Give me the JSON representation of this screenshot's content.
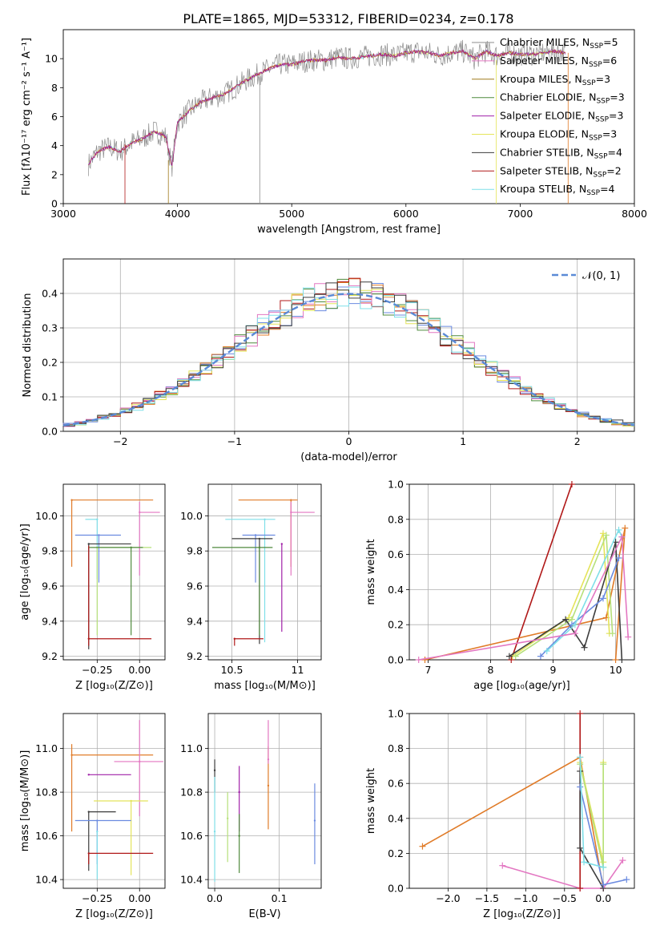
{
  "figure_title": "PLATE=1865, MJD=53312, FIBERID=0234, z=0.178",
  "colors": {
    "Chabrier MILES": "#8c8c8c",
    "Salpeter MILES": "#e377c2",
    "Kroupa MILES": "#a07a1a",
    "Chabrier ELODIE": "#4f8a3c",
    "Salpeter ELODIE": "#a020a8",
    "Kroupa ELODIE": "#e4e45a",
    "Chabrier STELIB": "#3c3c3c",
    "Salpeter STELIB": "#b01818",
    "Kroupa STELIB": "#7fdfe8",
    "blue": "#6b8be0",
    "orange": "#e07b28",
    "green": "#b6e07a"
  },
  "chart_data": [
    {
      "id": "spectrum",
      "type": "line",
      "title": "PLATE=1865, MJD=53312, FIBERID=0234, z=0.178",
      "xlabel": "wavelength [Angstrom, rest frame]",
      "ylabel": "Flux [fλ10⁻¹⁷ erg cm⁻² s⁻¹ A⁻¹]",
      "xlim": [
        3000,
        8000
      ],
      "ylim": [
        0,
        12
      ],
      "xticks": [
        3000,
        4000,
        5000,
        6000,
        7000,
        8000
      ],
      "yticks": [
        0,
        2,
        4,
        6,
        8,
        10
      ],
      "legend_position": "right",
      "spectrum_x": [
        3220,
        3300,
        3400,
        3500,
        3600,
        3700,
        3800,
        3900,
        3950,
        4000,
        4100,
        4200,
        4300,
        4400,
        4500,
        4600,
        4700,
        4800,
        4900,
        5000,
        5100,
        5200,
        5300,
        5400,
        5500,
        5600,
        5700,
        5800,
        5900,
        6000,
        6100,
        6200,
        6300,
        6400,
        6500,
        6600,
        6700,
        6800,
        6900,
        7000,
        7100,
        7200,
        7300,
        7400
      ],
      "spectrum_y": [
        2.7,
        3.6,
        3.9,
        3.6,
        4.2,
        4.5,
        5.0,
        4.6,
        2.5,
        5.6,
        6.4,
        7.0,
        7.3,
        7.5,
        8.0,
        8.5,
        8.9,
        9.3,
        9.6,
        9.6,
        9.8,
        9.9,
        9.9,
        10.1,
        10.0,
        10.1,
        10.2,
        10.3,
        10.2,
        10.4,
        10.5,
        10.4,
        10.2,
        10.4,
        10.5,
        10.0,
        10.5,
        10.2,
        10.4,
        10.3,
        10.3,
        10.4,
        10.5,
        10.4
      ],
      "series": [
        {
          "name": "Chabrier MILES",
          "label_prefix": "Chabrier MILES, N",
          "n_ssp": "5"
        },
        {
          "name": "Salpeter MILES",
          "label_prefix": "Salpeter MILES, N",
          "n_ssp": "6"
        },
        {
          "name": "Kroupa MILES",
          "label_prefix": "Kroupa MILES, N",
          "n_ssp": "3"
        },
        {
          "name": "Chabrier ELODIE",
          "label_prefix": "Chabrier ELODIE, N",
          "n_ssp": "3"
        },
        {
          "name": "Salpeter ELODIE",
          "label_prefix": "Salpeter ELODIE, N",
          "n_ssp": "3"
        },
        {
          "name": "Kroupa ELODIE",
          "label_prefix": "Kroupa ELODIE, N",
          "n_ssp": "3"
        },
        {
          "name": "Chabrier STELIB",
          "label_prefix": "Chabrier STELIB, N",
          "n_ssp": "4"
        },
        {
          "name": "Salpeter STELIB",
          "label_prefix": "Salpeter STELIB, N",
          "n_ssp": "2"
        },
        {
          "name": "Kroupa STELIB",
          "label_prefix": "Kroupa STELIB, N",
          "n_ssp": "4"
        }
      ],
      "legend_subscript": "SSP"
    },
    {
      "id": "residuals",
      "type": "histogram",
      "xlabel": "(data-model)/error",
      "ylabel": "Normed distribution",
      "xlim": [
        -2.5,
        2.5
      ],
      "ylim": [
        0,
        0.5
      ],
      "xticks": [
        -2,
        -1,
        0,
        1,
        2
      ],
      "yticks": [
        0.0,
        0.1,
        0.2,
        0.3,
        0.4
      ],
      "grid": true,
      "bin_width": 0.1,
      "legend": "𝒩(0, 1)",
      "legend_position": "top-right",
      "reference_curve": "normal pdf mean 0 sigma 1"
    },
    {
      "id": "age-vs-Z",
      "type": "errorbar",
      "xlabel": "Z [log₁₀(Z/Z⊙)]",
      "ylabel": "age  [log₁₀(age/yr)]",
      "xlim": [
        -0.45,
        0.15
      ],
      "ylim": [
        9.18,
        10.18
      ],
      "xticks": [
        -0.25,
        0.0
      ],
      "xticklabels": [
        "−0.25",
        "0.00"
      ],
      "yticks": [
        9.2,
        9.4,
        9.6,
        9.8,
        10.0
      ],
      "grid": true,
      "points": [
        {
          "color": "orange",
          "x": -0.4,
          "xerr": [
            0,
            0.48
          ],
          "y": 10.09,
          "yerr": [
            0.38,
            0.0
          ]
        },
        {
          "color": "Salpeter MILES",
          "x": 0.0,
          "xerr": [
            0,
            0.12
          ],
          "y": 10.02,
          "yerr": [
            0.36,
            0.06
          ]
        },
        {
          "color": "Kroupa STELIB",
          "x": -0.25,
          "xerr": [
            0.07,
            0.0
          ],
          "y": 9.98,
          "yerr": [
            0.34,
            0.0
          ]
        },
        {
          "color": "blue",
          "x": -0.24,
          "xerr": [
            0.14,
            0.13
          ],
          "y": 9.89,
          "yerr": [
            0.27,
            0.0
          ]
        },
        {
          "color": "Chabrier STELIB",
          "x": -0.3,
          "xerr": [
            0,
            0.25
          ],
          "y": 9.84,
          "yerr": [
            0.6,
            0.0
          ]
        },
        {
          "color": "green",
          "x": -0.25,
          "xerr": [
            0,
            0.32
          ],
          "y": 9.82,
          "yerr": [
            0.5,
            0.0
          ]
        },
        {
          "color": "Chabrier ELODIE",
          "x": -0.05,
          "xerr": [
            0.25,
            0.07
          ],
          "y": 9.82,
          "yerr": [
            0.5,
            0.0
          ]
        },
        {
          "color": "Salpeter STELIB",
          "x": -0.3,
          "xerr": [
            0,
            0.37
          ],
          "y": 9.3,
          "yerr": [
            0.04,
            0.53
          ]
        }
      ]
    },
    {
      "id": "age-vs-mass",
      "type": "errorbar",
      "xlabel": "mass [log₁₀(M/M⊙)]",
      "xlim": [
        10.32,
        11.18
      ],
      "ylim": [
        9.18,
        10.18
      ],
      "xticks": [
        10.5,
        11.0
      ],
      "yticks": [
        9.2,
        9.4,
        9.6,
        9.8,
        10.0
      ],
      "grid": true,
      "points": [
        {
          "color": "orange",
          "x": 10.95,
          "xerr": [
            0.4,
            0.05
          ],
          "y": 10.09,
          "yerr": [
            0.38,
            0.0
          ]
        },
        {
          "color": "Salpeter MILES",
          "x": 10.95,
          "xerr": [
            0,
            0.18
          ],
          "y": 10.02,
          "yerr": [
            0.36,
            0.06
          ]
        },
        {
          "color": "Kroupa STELIB",
          "x": 10.75,
          "xerr": [
            0.3,
            0.08
          ],
          "y": 9.98,
          "yerr": [
            0.7,
            0.0
          ]
        },
        {
          "color": "blue",
          "x": 10.68,
          "xerr": [
            0.1,
            0.15
          ],
          "y": 9.89,
          "yerr": [
            0.27,
            0.0
          ]
        },
        {
          "color": "Chabrier STELIB",
          "x": 10.71,
          "xerr": [
            0.21,
            0.1
          ],
          "y": 9.87,
          "yerr": [
            0.6,
            0.0
          ]
        },
        {
          "color": "Salpeter ELODIE",
          "x": 10.88,
          "xerr": [
            0,
            0.0
          ],
          "y": 9.84,
          "yerr": [
            0.5,
            0.0
          ]
        },
        {
          "color": "Chabrier ELODIE",
          "x": 10.71,
          "xerr": [
            0.36,
            0.1
          ],
          "y": 9.82,
          "yerr": [
            0.5,
            0.0
          ]
        },
        {
          "color": "Salpeter STELIB",
          "x": 10.52,
          "xerr": [
            0.0,
            0.22
          ],
          "y": 9.3,
          "yerr": [
            0.04,
            0.0
          ]
        }
      ]
    },
    {
      "id": "weight-vs-age",
      "type": "line",
      "xlabel": "age  [log₁₀(age/yr)]",
      "ylabel": "mass weight",
      "xlim": [
        6.7,
        10.3
      ],
      "ylim": [
        0,
        1.0
      ],
      "xticks": [
        7,
        8,
        9,
        10
      ],
      "yticks": [
        0.0,
        0.2,
        0.4,
        0.6,
        0.8,
        1.0
      ],
      "grid": true,
      "series": [
        {
          "color": "Salpeter STELIB",
          "x": [
            8.33,
            9.3
          ],
          "y": [
            0.0,
            1.0
          ]
        },
        {
          "color": "orange",
          "x": [
            6.95,
            9.85,
            10.15,
            10.0
          ],
          "y": [
            0.0,
            0.24,
            0.75,
            0.0
          ]
        },
        {
          "color": "Kroupa ELODIE",
          "x": [
            8.35,
            9.25,
            9.8,
            9.9
          ],
          "y": [
            0.02,
            0.24,
            0.72,
            0.15
          ]
        },
        {
          "color": "green",
          "x": [
            8.4,
            9.3,
            9.85,
            9.95
          ],
          "y": [
            0.02,
            0.23,
            0.71,
            0.15
          ]
        },
        {
          "color": "Chabrier STELIB",
          "x": [
            8.3,
            9.2,
            9.5,
            10.0,
            10.1
          ],
          "y": [
            0.02,
            0.23,
            0.07,
            0.67,
            0.0
          ]
        },
        {
          "color": "blue",
          "x": [
            8.8,
            9.3,
            9.8,
            10.05
          ],
          "y": [
            0.02,
            0.2,
            0.35,
            0.58
          ]
        },
        {
          "color": "Kroupa STELIB",
          "x": [
            8.9,
            9.35,
            10.05,
            10.1
          ],
          "y": [
            0.05,
            0.2,
            0.74,
            0.7
          ]
        },
        {
          "color": "Salpeter MILES",
          "x": [
            6.85,
            9.35,
            10.1,
            10.2
          ],
          "y": [
            0.0,
            0.15,
            0.7,
            0.13
          ]
        }
      ]
    },
    {
      "id": "mass-vs-Z",
      "type": "errorbar",
      "xlabel": "Z [log₁₀(Z/Z⊙)]",
      "ylabel": "mass [log₁₀(M/M⊙)]",
      "xlim": [
        -0.45,
        0.15
      ],
      "ylim": [
        10.36,
        11.16
      ],
      "xticks": [
        -0.25,
        0.0
      ],
      "xticklabels": [
        "−0.25",
        "0.00"
      ],
      "yticks": [
        10.4,
        10.6,
        10.8,
        11.0
      ],
      "grid": true,
      "points": [
        {
          "color": "orange",
          "x": -0.4,
          "xerr": [
            0,
            0.48
          ],
          "y": 10.97,
          "yerr": [
            0.35,
            0.05
          ]
        },
        {
          "color": "Salpeter MILES",
          "x": 0.0,
          "xerr": [
            0.15,
            0.14
          ],
          "y": 10.94,
          "yerr": [
            0.25,
            0.19
          ]
        },
        {
          "color": "Salpeter ELODIE",
          "x": -0.3,
          "xerr": [
            0,
            0.25
          ],
          "y": 10.88,
          "yerr": [
            0,
            0.0
          ]
        },
        {
          "color": "Kroupa ELODIE",
          "x": -0.05,
          "xerr": [
            0.22,
            0.1
          ],
          "y": 10.76,
          "yerr": [
            0.34,
            0.0
          ]
        },
        {
          "color": "Chabrier STELIB",
          "x": -0.3,
          "xerr": [
            0,
            0.16
          ],
          "y": 10.71,
          "yerr": [
            0.27,
            0.0
          ]
        },
        {
          "color": "blue",
          "x": -0.25,
          "xerr": [
            0.13,
            0.2
          ],
          "y": 10.67,
          "yerr": [
            0.2,
            0.0
          ]
        },
        {
          "color": "Kroupa STELIB",
          "x": -0.25,
          "xerr": [
            0,
            0.0
          ],
          "y": 10.62,
          "yerr": [
            0.22,
            0.0
          ]
        },
        {
          "color": "Salpeter STELIB",
          "x": -0.3,
          "xerr": [
            0,
            0.38
          ],
          "y": 10.52,
          "yerr": [
            0.05,
            0.0
          ]
        }
      ]
    },
    {
      "id": "mass-vs-EBV",
      "type": "errorbar",
      "xlabel": "E(B-V)",
      "xlim": [
        -0.01,
        0.165
      ],
      "ylim": [
        10.36,
        11.16
      ],
      "xticks": [
        0.0,
        0.1
      ],
      "xticklabels": [
        "0.0",
        "0.1"
      ],
      "yticks": [
        10.4,
        10.6,
        10.8,
        11.0
      ],
      "grid": true,
      "points": [
        {
          "color": "Chabrier STELIB",
          "x": 0.0,
          "y": 10.9,
          "yerr": [
            0.1,
            0.05
          ]
        },
        {
          "color": "Kroupa STELIB",
          "x": 0.0,
          "y": 10.62,
          "yerr": [
            0.23,
            0.25
          ]
        },
        {
          "color": "green",
          "x": 0.02,
          "y": 10.68,
          "yerr": [
            0.2,
            0.12
          ]
        },
        {
          "color": "Salpeter ELODIE",
          "x": 0.038,
          "y": 10.8,
          "yerr": [
            0.18,
            0.12
          ]
        },
        {
          "color": "Chabrier ELODIE",
          "x": 0.038,
          "y": 10.6,
          "yerr": [
            0.17,
            0.1
          ]
        },
        {
          "color": "orange",
          "x": 0.083,
          "y": 10.83,
          "yerr": [
            0.2,
            0.18
          ]
        },
        {
          "color": "Salpeter MILES",
          "x": 0.083,
          "y": 10.95,
          "yerr": [
            0.02,
            0.18
          ]
        },
        {
          "color": "blue",
          "x": 0.155,
          "y": 10.67,
          "yerr": [
            0.2,
            0.17
          ]
        }
      ]
    },
    {
      "id": "weight-vs-Z",
      "type": "line",
      "xlabel": "Z [log₁₀(Z/Z⊙)]",
      "ylabel": "mass weight",
      "xlim": [
        -2.5,
        0.4
      ],
      "ylim": [
        0,
        1.0
      ],
      "xticks": [
        -2.0,
        -1.5,
        -1.0,
        -0.5,
        0.0
      ],
      "xticklabels": [
        "−2.0",
        "−1.5",
        "−1.0",
        "−0.5",
        "0.0"
      ],
      "yticks": [
        0.0,
        0.2,
        0.4,
        0.6,
        0.8,
        1.0
      ],
      "grid": true,
      "series": [
        {
          "color": "orange",
          "x": [
            -2.33,
            -0.3,
            0.0
          ],
          "y": [
            0.24,
            0.75,
            0.0
          ]
        },
        {
          "color": "Salpeter MILES",
          "x": [
            -1.3,
            -0.3,
            0.0,
            0.25
          ],
          "y": [
            0.13,
            0.0,
            0.0,
            0.16
          ]
        },
        {
          "color": "Salpeter STELIB",
          "x": [
            -0.3,
            -0.3
          ],
          "y": [
            0.0,
            1.0
          ]
        },
        {
          "color": "Kroupa ELODIE",
          "x": [
            -0.3,
            0.0,
            0.0
          ],
          "y": [
            0.72,
            0.15,
            0.72
          ]
        },
        {
          "color": "green",
          "x": [
            -0.3,
            0.0,
            0.0
          ],
          "y": [
            0.71,
            0.12,
            0.71
          ]
        },
        {
          "color": "Chabrier STELIB",
          "x": [
            -0.3,
            -0.3,
            0.0
          ],
          "y": [
            0.67,
            0.23,
            0.0
          ]
        },
        {
          "color": "blue",
          "x": [
            -0.3,
            0.0,
            0.3
          ],
          "y": [
            0.58,
            0.02,
            0.05
          ]
        },
        {
          "color": "Kroupa STELIB",
          "x": [
            -0.3,
            -0.25,
            0.0
          ],
          "y": [
            0.75,
            0.15,
            0.12
          ]
        }
      ]
    }
  ]
}
